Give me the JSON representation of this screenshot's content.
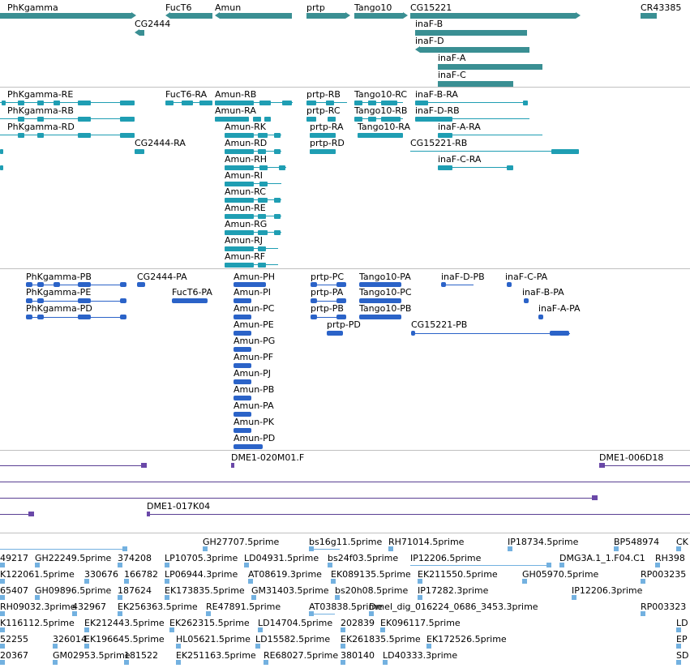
{
  "colors": {
    "gene": "#3a8f93",
    "transcript": "#1f9eb3",
    "protein": "#2b63c8",
    "clone": "#5a3f93",
    "est": "#73b1e0",
    "separator": "#c0c0c0"
  },
  "genes": [
    {
      "label": "PhKgamma"
    },
    {
      "label": "FucT6"
    },
    {
      "label": "Amun"
    },
    {
      "label": "prtp"
    },
    {
      "label": "Tango10"
    },
    {
      "label": "CG15221"
    },
    {
      "label": "CR43385"
    },
    {
      "label": "CG2444"
    },
    {
      "label": "inaF-B"
    },
    {
      "label": "inaF-D"
    },
    {
      "label": "inaF-A"
    },
    {
      "label": "inaF-C"
    }
  ],
  "transcripts": [
    {
      "label": "PhKgamma-RE"
    },
    {
      "label": "PhKgamma-RB"
    },
    {
      "label": "PhKgamma-RD"
    },
    {
      "label": "FucT6-RA"
    },
    {
      "label": "CG2444-RA"
    },
    {
      "label": "Amun-RB"
    },
    {
      "label": "Amun-RA"
    },
    {
      "label": "Amun-RK"
    },
    {
      "label": "Amun-RD"
    },
    {
      "label": "Amun-RH"
    },
    {
      "label": "Amun-RI"
    },
    {
      "label": "Amun-RC"
    },
    {
      "label": "Amun-RE"
    },
    {
      "label": "Amun-RG"
    },
    {
      "label": "Amun-RJ"
    },
    {
      "label": "Amun-RF"
    },
    {
      "label": "prtp-RB"
    },
    {
      "label": "prtp-RC"
    },
    {
      "label": "prtp-RA"
    },
    {
      "label": "prtp-RD"
    },
    {
      "label": "Tango10-RC"
    },
    {
      "label": "Tango10-RB"
    },
    {
      "label": "Tango10-RA"
    },
    {
      "label": "inaF-B-RA"
    },
    {
      "label": "inaF-D-RB"
    },
    {
      "label": "inaF-A-RA"
    },
    {
      "label": "CG15221-RB"
    },
    {
      "label": "inaF-C-RA"
    }
  ],
  "proteins": [
    {
      "label": "PhKgamma-PB"
    },
    {
      "label": "PhKgamma-PE"
    },
    {
      "label": "PhKgamma-PD"
    },
    {
      "label": "CG2444-PA"
    },
    {
      "label": "FucT6-PA"
    },
    {
      "label": "Amun-PH"
    },
    {
      "label": "Amun-PI"
    },
    {
      "label": "Amun-PC"
    },
    {
      "label": "Amun-PE"
    },
    {
      "label": "Amun-PG"
    },
    {
      "label": "Amun-PF"
    },
    {
      "label": "Amun-PJ"
    },
    {
      "label": "Amun-PB"
    },
    {
      "label": "Amun-PA"
    },
    {
      "label": "Amun-PK"
    },
    {
      "label": "Amun-PD"
    },
    {
      "label": "prtp-PC"
    },
    {
      "label": "prtp-PA"
    },
    {
      "label": "prtp-PB"
    },
    {
      "label": "prtp-PD"
    },
    {
      "label": "Tango10-PA"
    },
    {
      "label": "Tango10-PC"
    },
    {
      "label": "Tango10-PB"
    },
    {
      "label": "inaF-D-PB"
    },
    {
      "label": "inaF-C-PA"
    },
    {
      "label": "inaF-B-PA"
    },
    {
      "label": "inaF-A-PA"
    },
    {
      "label": "CG15221-PB"
    }
  ],
  "clones": [
    {
      "label": "DME1-020M01.F"
    },
    {
      "label": "DME1-006D18"
    },
    {
      "label": "DME1-017K04"
    }
  ],
  "ests": [
    {
      "label": "GH27707.5prime"
    },
    {
      "label": "bs16g11.5prime"
    },
    {
      "label": "RH71014.5prime"
    },
    {
      "label": "IP18734.5prime"
    },
    {
      "label": "BP548974"
    },
    {
      "label": "CK"
    },
    {
      "label": "49217"
    },
    {
      "label": "GH22249.5prime"
    },
    {
      "label": "374208"
    },
    {
      "label": "LP10705.3prime"
    },
    {
      "label": "LD04931.5prime"
    },
    {
      "label": "bs24f03.5prime"
    },
    {
      "label": "IP12206.5prime"
    },
    {
      "label": "DMG3A.1_1.F04.C1"
    },
    {
      "label": "RH398"
    },
    {
      "label": "K122061.5prime"
    },
    {
      "label": "330676"
    },
    {
      "label": "166782"
    },
    {
      "label": "LP06944.3prime"
    },
    {
      "label": "AT08619.3prime"
    },
    {
      "label": "EK089135.5prime"
    },
    {
      "label": "EK211550.5prime"
    },
    {
      "label": "GH05970.5prime"
    },
    {
      "label": "RP003235"
    },
    {
      "label": "65407"
    },
    {
      "label": "GH09896.5prime"
    },
    {
      "label": "187624"
    },
    {
      "label": "EK173835.5prime"
    },
    {
      "label": "GM31403.5prime"
    },
    {
      "label": "bs20h08.5prime"
    },
    {
      "label": "IP17282.3prime"
    },
    {
      "label": "IP12206.3prime"
    },
    {
      "label": "RH09032.3prime"
    },
    {
      "label": "432967"
    },
    {
      "label": "EK256363.5prime"
    },
    {
      "label": "RE47891.5prime"
    },
    {
      "label": "AT03838.5prime"
    },
    {
      "label": "Dmel_dig_016224_0686_3453.3prime"
    },
    {
      "label": "RP003323"
    },
    {
      "label": "K116112.5prime"
    },
    {
      "label": "EK212443.5prime"
    },
    {
      "label": "EK262315.5prime"
    },
    {
      "label": "LD14704.5prime"
    },
    {
      "label": "202839"
    },
    {
      "label": "EK096117.5prime"
    },
    {
      "label": "LD"
    },
    {
      "label": "52255"
    },
    {
      "label": "326014"
    },
    {
      "label": "EK196645.5prime"
    },
    {
      "label": "HL05621.5prime"
    },
    {
      "label": "LD15582.5prime"
    },
    {
      "label": "EK261835.5prime"
    },
    {
      "label": "EK172526.5prime"
    },
    {
      "label": "EP"
    },
    {
      "label": "20367"
    },
    {
      "label": "GM02953.5prime"
    },
    {
      "label": "181522"
    },
    {
      "label": "EK251163.5prime"
    },
    {
      "label": "RE68027.5prime"
    },
    {
      "label": "380140"
    },
    {
      "label": "LD40333.3prime"
    },
    {
      "label": "SD"
    }
  ]
}
